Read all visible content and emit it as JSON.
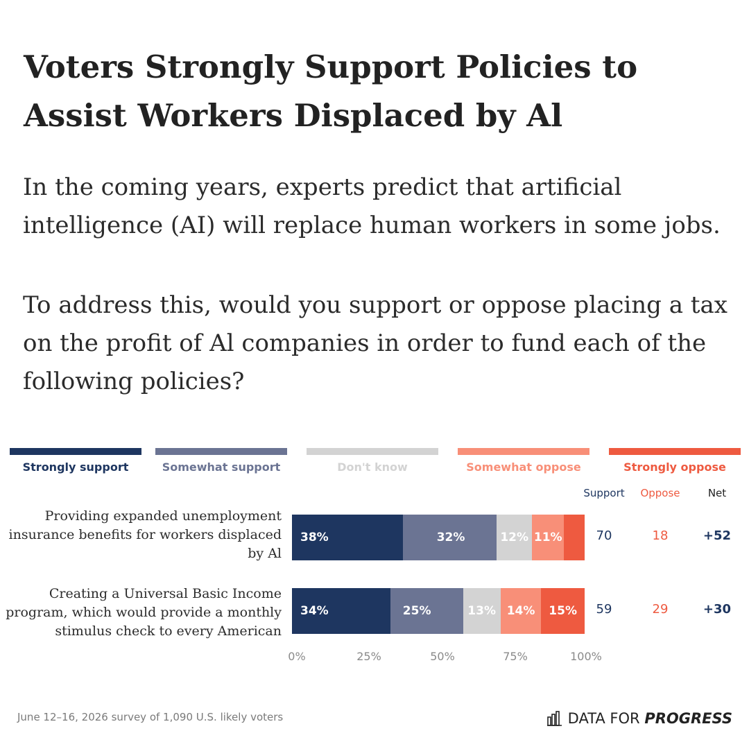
{
  "title": "Voters Strongly Support Policies to Assist Workers Displaced by Al",
  "intro": "In the coming years, experts predict that artificial intelligence (AI) will replace human workers in some jobs.",
  "question": "To address this, would you support or oppose placing a tax on the profit of Al companies in order to fund each of the following policies?",
  "chart_data": {
    "type": "bar",
    "orientation": "horizontal",
    "stacked": true,
    "xlim": [
      0,
      100
    ],
    "ticks": [
      "0%",
      "25%",
      "50%",
      "75%",
      "100%"
    ],
    "legend": [
      {
        "name": "Strongly support",
        "color": "#1e3660",
        "text_color": "#1e3660"
      },
      {
        "name": "Somewhat support",
        "color": "#6b7493",
        "text_color": "#6b7493"
      },
      {
        "name": "Don't know",
        "color": "#d3d3d3",
        "text_color": "#d3d3d3"
      },
      {
        "name": "Somewhat oppose",
        "color": "#f88f78",
        "text_color": "#f88f78"
      },
      {
        "name": "Strongly oppose",
        "color": "#ee5a40",
        "text_color": "#ee5a40"
      }
    ],
    "legend_placement": "top",
    "columns": [
      {
        "label": "Support",
        "color": "#1e3660"
      },
      {
        "label": "Oppose",
        "color": "#ee5a40"
      },
      {
        "label": "Net",
        "color": "#222222"
      }
    ],
    "rows": [
      {
        "label": "Providing expanded unemployment insurance benefits for workers displaced by Al",
        "values": [
          38,
          32,
          12,
          11,
          7
        ],
        "labels": [
          "38%",
          "32%",
          "12%",
          "11%",
          ""
        ],
        "support": "70",
        "oppose": "18",
        "net": "+52"
      },
      {
        "label": "Creating a Universal Basic Income program, which would provide a monthly stimulus check to every American",
        "values": [
          34,
          25,
          13,
          14,
          15
        ],
        "labels": [
          "34%",
          "25%",
          "13%",
          "14%",
          "15%"
        ],
        "support": "59",
        "oppose": "29",
        "net": "+30"
      }
    ]
  },
  "footer": "June 12–16, 2026 survey of 1,090 U.S. likely voters",
  "brand": {
    "light": "DATA FOR",
    "bold": "PROGRESS",
    "icon": "bar-chart-icon"
  }
}
